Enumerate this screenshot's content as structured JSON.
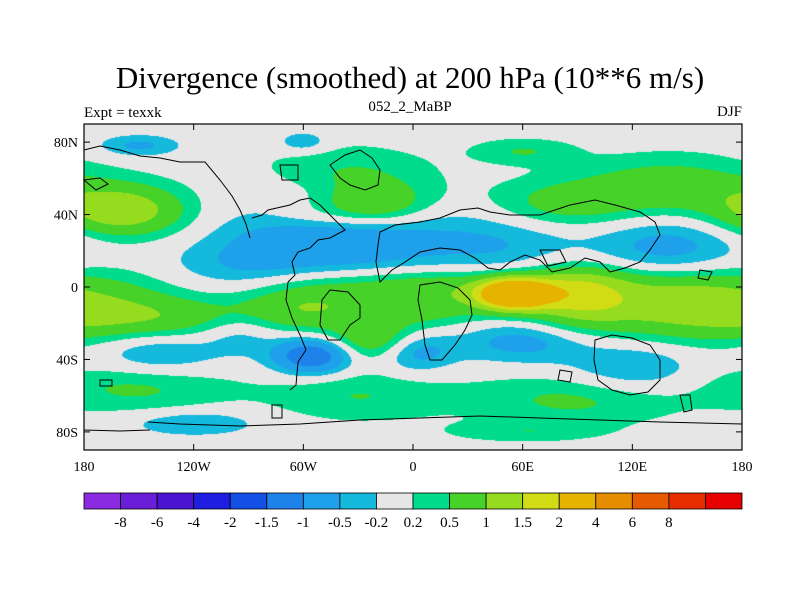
{
  "chart_data": {
    "type": "heatmap",
    "title": "Divergence (smoothed) at 200 hPa (10**6 m/s)",
    "subtitle_left": "Expt = texxk",
    "subtitle_center": "052_2_MaBP",
    "subtitle_right": "DJF",
    "xlabel": "",
    "ylabel": "",
    "xlim": [
      -180,
      180
    ],
    "ylim": [
      -90,
      90
    ],
    "x_ticks": [
      {
        "value": -180,
        "label": "180"
      },
      {
        "value": -120,
        "label": "120W"
      },
      {
        "value": -60,
        "label": "60W"
      },
      {
        "value": 0,
        "label": "0"
      },
      {
        "value": 60,
        "label": "60E"
      },
      {
        "value": 120,
        "label": "120E"
      },
      {
        "value": 180,
        "label": "180"
      }
    ],
    "y_ticks": [
      {
        "value": 80,
        "label": "80N"
      },
      {
        "value": 40,
        "label": "40N"
      },
      {
        "value": 0,
        "label": "0"
      },
      {
        "value": -40,
        "label": "40S"
      },
      {
        "value": -80,
        "label": "80S"
      }
    ],
    "colorbar": {
      "labels": [
        "-8",
        "-6",
        "-4",
        "-2",
        "-1.5",
        "-1",
        "-0.5",
        "-0.2",
        "0.2",
        "0.5",
        "1",
        "1.5",
        "2",
        "4",
        "6",
        "8"
      ],
      "bounds": [
        -8,
        -6,
        -4,
        -2,
        -1.5,
        -1,
        -0.5,
        -0.2,
        0.2,
        0.5,
        1,
        1.5,
        2,
        4,
        6,
        8
      ],
      "colors": [
        "#8a2be2",
        "#6a1ed8",
        "#4b14d2",
        "#1e1ee0",
        "#1450e6",
        "#1e82eb",
        "#1ea0eb",
        "#14b9dc",
        "#e6e6e6",
        "#00dc8c",
        "#46d228",
        "#96dc1e",
        "#d2dc14",
        "#e6b400",
        "#e68c00",
        "#e65a00",
        "#e62d00",
        "#e60000"
      ]
    },
    "field": [
      [
        40,
        -60,
        30,
        -15,
        -0.8
      ],
      [
        25,
        -25,
        35,
        -14,
        -0.7
      ],
      [
        20,
        140,
        30,
        -14,
        -0.8
      ],
      [
        25,
        50,
        30,
        -14,
        -0.5
      ],
      [
        8,
        -90,
        30,
        -14,
        -0.6
      ],
      [
        -18,
        -140,
        35,
        -10,
        0.9
      ],
      [
        -10,
        -60,
        30,
        -10,
        1.1
      ],
      [
        -8,
        10,
        25,
        -10,
        0.8
      ],
      [
        -4,
        55,
        14,
        -6,
        3.2
      ],
      [
        -5,
        90,
        20,
        -12,
        1.3
      ],
      [
        -8,
        150,
        40,
        -14,
        1.4
      ],
      [
        3,
        10,
        80,
        -6,
        0.4
      ],
      [
        42,
        -160,
        25,
        -10,
        1.4
      ],
      [
        40,
        -55,
        25,
        -8,
        0.8
      ],
      [
        45,
        -20,
        20,
        -8,
        0.9
      ],
      [
        60,
        -40,
        35,
        -12,
        0.7
      ],
      [
        45,
        80,
        30,
        -10,
        0.7
      ],
      [
        55,
        140,
        35,
        -12,
        0.8
      ],
      [
        -35,
        -140,
        25,
        -10,
        -0.7
      ],
      [
        -38,
        -55,
        15,
        -7,
        -1.6
      ],
      [
        -35,
        0,
        15,
        -8,
        -0.9
      ],
      [
        -30,
        60,
        25,
        -8,
        -0.7
      ],
      [
        -45,
        120,
        25,
        -10,
        -0.6
      ],
      [
        -25,
        -95,
        15,
        -8,
        -0.5
      ],
      [
        -30,
        -20,
        18,
        -8,
        1.0
      ],
      [
        -55,
        -150,
        35,
        -10,
        0.6
      ],
      [
        -60,
        -30,
        35,
        -10,
        0.5
      ],
      [
        -62,
        90,
        40,
        -10,
        0.6
      ],
      [
        78,
        -150,
        15,
        -4,
        -0.6
      ],
      [
        80,
        -60,
        10,
        -4,
        -0.5
      ],
      [
        75,
        60,
        20,
        -5,
        0.5
      ],
      [
        -75,
        -120,
        25,
        -5,
        -0.5
      ],
      [
        -80,
        60,
        30,
        -4,
        0.4
      ]
    ]
  }
}
